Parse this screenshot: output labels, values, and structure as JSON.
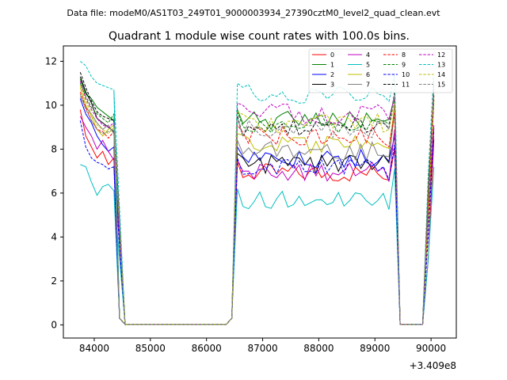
{
  "chart_data": {
    "type": "line",
    "suptitle": "Data file: modeM0/AS1T03_249T01_9000003934_27390cztM0_level2_quad_clean.evt",
    "title": "Quadrant 1 module wise count rates with 100.0s bins.",
    "xlabel": "",
    "ylabel": "",
    "x_offset_label": "+3.409e8",
    "xlim": [
      83450,
      90450
    ],
    "ylim": [
      -0.6,
      12.7
    ],
    "x_ticks": [
      84000,
      85000,
      86000,
      87000,
      88000,
      89000,
      90000
    ],
    "x_tick_labels": [
      "84000",
      "85000",
      "86000",
      "87000",
      "88000",
      "89000",
      "90000"
    ],
    "y_ticks": [
      0,
      2,
      4,
      6,
      8,
      10,
      12
    ],
    "y_tick_labels": [
      "0",
      "2",
      "4",
      "6",
      "8",
      "10",
      "12"
    ],
    "legend_position": "top-right",
    "legend_columns": 4,
    "segments": [
      {
        "x_start": 83750,
        "n": 9
      },
      {
        "x_start": 84350,
        "n": 20
      },
      {
        "x_start": 86350,
        "n": 4
      },
      {
        "x_start": 86750,
        "n": 25
      },
      {
        "x_start": 89250,
        "n": 4
      },
      {
        "x_start": 89650,
        "n": 5
      }
    ],
    "series": [
      {
        "name": "0",
        "color": "#ff0000",
        "dash": "solid",
        "first": [
          9.8,
          8.6,
          8.1,
          7.6,
          7.9,
          7.3,
          7.6,
          7.0
        ],
        "plateau": 6.9,
        "peak": 8.0,
        "tail": 0.8
      },
      {
        "name": "1",
        "color": "#008000",
        "dash": "solid",
        "first": [
          11.2,
          10.5,
          10.3,
          9.9,
          9.7,
          9.5,
          9.3,
          9.8
        ],
        "plateau": 9.3,
        "peak": 10.4,
        "tail": 1.2
      },
      {
        "name": "2",
        "color": "#0000ff",
        "dash": "solid",
        "first": [
          10.3,
          9.6,
          9.2,
          8.6,
          8.2,
          7.9,
          8.1,
          7.8
        ],
        "plateau": 7.6,
        "peak": 8.6,
        "tail": 0.7
      },
      {
        "name": "3",
        "color": "#000000",
        "dash": "solid",
        "first": [
          11.3,
          10.6,
          10.1,
          9.4,
          9.2,
          9.0,
          8.8,
          10.2
        ],
        "plateau": 7.3,
        "peak": 10.0,
        "tail": 1.4
      },
      {
        "name": "4",
        "color": "#c000c0",
        "dash": "solid",
        "first": [
          9.5,
          9.0,
          8.6,
          8.0,
          8.4,
          7.9,
          7.5,
          8.7
        ],
        "plateau": 7.0,
        "peak": 8.9,
        "tail": 1.0
      },
      {
        "name": "5",
        "color": "#00bfbf",
        "dash": "solid",
        "first": [
          7.3,
          7.2,
          6.5,
          5.9,
          6.3,
          6.4,
          6.1,
          6.0
        ],
        "plateau": 5.7,
        "peak": 7.1,
        "tail": 0.9
      },
      {
        "name": "6",
        "color": "#bfbf00",
        "dash": "solid",
        "first": [
          10.8,
          10.0,
          9.5,
          8.9,
          8.6,
          8.9,
          9.1,
          9.4
        ],
        "plateau": 8.2,
        "peak": 9.9,
        "tail": 1.1
      },
      {
        "name": "7",
        "color": "#808080",
        "dash": "solid",
        "first": [
          10.4,
          9.9,
          9.6,
          9.2,
          8.9,
          9.1,
          8.7,
          9.0
        ],
        "plateau": 7.9,
        "peak": 9.6,
        "tail": 1.0
      },
      {
        "name": "8",
        "color": "#ff0000",
        "dash": "dashed",
        "first": [
          10.6,
          9.9,
          9.3,
          8.9,
          8.8,
          8.5,
          8.8,
          9.1
        ],
        "plateau": 8.6,
        "peak": 9.7,
        "tail": 1.0
      },
      {
        "name": "9",
        "color": "#008000",
        "dash": "dashed",
        "first": [
          11.0,
          10.4,
          9.9,
          9.6,
          9.4,
          9.2,
          9.6,
          9.5
        ],
        "plateau": 9.2,
        "peak": 10.3,
        "tail": 1.3
      },
      {
        "name": "10",
        "color": "#0000ff",
        "dash": "dashed",
        "first": [
          9.3,
          8.1,
          7.6,
          7.4,
          7.3,
          7.1,
          7.2,
          7.4
        ],
        "plateau": 7.1,
        "peak": 8.2,
        "tail": 0.7
      },
      {
        "name": "11",
        "color": "#000000",
        "dash": "dashed",
        "first": [
          11.5,
          10.8,
          10.2,
          9.7,
          9.5,
          9.4,
          9.3,
          10.0
        ],
        "plateau": 9.0,
        "peak": 10.6,
        "tail": 1.2
      },
      {
        "name": "12",
        "color": "#c000c0",
        "dash": "dashed",
        "first": [
          11.1,
          10.3,
          9.8,
          9.4,
          9.1,
          9.0,
          9.2,
          9.6
        ],
        "plateau": 9.6,
        "peak": 10.4,
        "tail": 1.1
      },
      {
        "name": "13",
        "color": "#00bfbf",
        "dash": "dashed",
        "first": [
          12.0,
          11.8,
          11.3,
          11.0,
          10.9,
          10.8,
          10.7,
          10.8
        ],
        "plateau": 10.5,
        "peak": 11.4,
        "tail": 1.3
      },
      {
        "name": "14",
        "color": "#bfbf00",
        "dash": "dashed",
        "first": [
          10.9,
          10.2,
          9.6,
          9.1,
          8.9,
          8.7,
          9.0,
          9.3
        ],
        "plateau": 9.2,
        "peak": 10.1,
        "tail": 1.1
      },
      {
        "name": "15",
        "color": "#808080",
        "dash": "dashed",
        "first": [
          10.5,
          9.8,
          9.3,
          8.9,
          8.7,
          8.8,
          8.9,
          9.1
        ],
        "plateau": 8.9,
        "peak": 10.5,
        "tail": 1.2
      }
    ]
  }
}
